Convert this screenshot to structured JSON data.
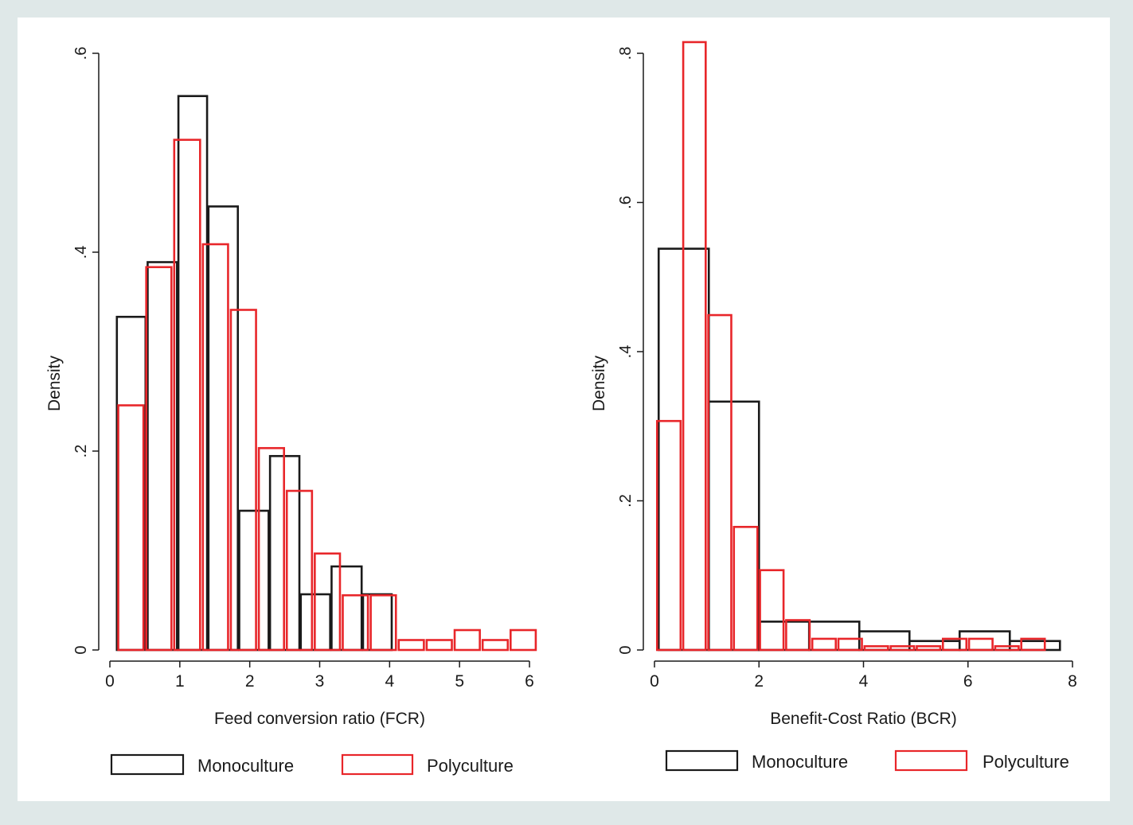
{
  "chart_data": [
    {
      "type": "bar",
      "subtype": "overlaid-histogram",
      "xlabel": "Feed conversion ratio (FCR)",
      "ylabel": "Density",
      "xlim": [
        0,
        6
      ],
      "ylim": [
        0,
        0.6
      ],
      "x_ticks": [
        0,
        1,
        2,
        3,
        4,
        5,
        6
      ],
      "x_tick_labels": [
        "0",
        "1",
        "2",
        "3",
        "4",
        "5",
        "6"
      ],
      "y_ticks": [
        0,
        0.2,
        0.4,
        0.6
      ],
      "y_tick_labels": [
        "0",
        ".2",
        ".4",
        ".6"
      ],
      "grid": false,
      "legend_position": "bottom",
      "series": [
        {
          "name": "Monoculture",
          "color": "#1a1a1a",
          "bins": [
            {
              "x0": 0.1,
              "x1": 0.51,
              "value": 0.335
            },
            {
              "x0": 0.54,
              "x1": 0.96,
              "value": 0.39
            },
            {
              "x0": 0.98,
              "x1": 1.39,
              "value": 0.557
            },
            {
              "x0": 1.41,
              "x1": 1.83,
              "value": 0.446
            },
            {
              "x0": 1.85,
              "x1": 2.27,
              "value": 0.14
            },
            {
              "x0": 2.29,
              "x1": 2.71,
              "value": 0.195
            },
            {
              "x0": 2.73,
              "x1": 3.15,
              "value": 0.056
            },
            {
              "x0": 3.17,
              "x1": 3.6,
              "value": 0.084
            },
            {
              "x0": 3.62,
              "x1": 4.03,
              "value": 0.056
            }
          ]
        },
        {
          "name": "Polyculture",
          "color": "#e8262a",
          "bins": [
            {
              "x0": 0.12,
              "x1": 0.48,
              "value": 0.246
            },
            {
              "x0": 0.52,
              "x1": 0.88,
              "value": 0.385
            },
            {
              "x0": 0.92,
              "x1": 1.29,
              "value": 0.513
            },
            {
              "x0": 1.33,
              "x1": 1.69,
              "value": 0.408
            },
            {
              "x0": 1.73,
              "x1": 2.09,
              "value": 0.342
            },
            {
              "x0": 2.13,
              "x1": 2.49,
              "value": 0.203
            },
            {
              "x0": 2.53,
              "x1": 2.89,
              "value": 0.16
            },
            {
              "x0": 2.93,
              "x1": 3.29,
              "value": 0.097
            },
            {
              "x0": 3.33,
              "x1": 3.69,
              "value": 0.055
            },
            {
              "x0": 3.73,
              "x1": 4.09,
              "value": 0.055
            },
            {
              "x0": 4.13,
              "x1": 4.49,
              "value": 0.01
            },
            {
              "x0": 4.53,
              "x1": 4.89,
              "value": 0.01
            },
            {
              "x0": 4.93,
              "x1": 5.29,
              "value": 0.02
            },
            {
              "x0": 5.33,
              "x1": 5.69,
              "value": 0.01
            },
            {
              "x0": 5.73,
              "x1": 6.09,
              "value": 0.02
            }
          ]
        }
      ]
    },
    {
      "type": "bar",
      "subtype": "overlaid-histogram",
      "xlabel": "Benefit-Cost Ratio (BCR)",
      "ylabel": "Density",
      "xlim": [
        0,
        8
      ],
      "ylim": [
        0,
        0.8
      ],
      "x_ticks": [
        0,
        2,
        4,
        6,
        8
      ],
      "x_tick_labels": [
        "0",
        "2",
        "4",
        "6",
        "8"
      ],
      "y_ticks": [
        0,
        0.2,
        0.4,
        0.6,
        0.8
      ],
      "y_tick_labels": [
        "0",
        ".2",
        ".4",
        ".6",
        ".8"
      ],
      "grid": false,
      "legend_position": "bottom",
      "series": [
        {
          "name": "Monoculture",
          "color": "#1a1a1a",
          "bins": [
            {
              "x0": 0.08,
              "x1": 1.04,
              "value": 0.538
            },
            {
              "x0": 1.04,
              "x1": 2.0,
              "value": 0.333
            },
            {
              "x0": 2.0,
              "x1": 2.96,
              "value": 0.038
            },
            {
              "x0": 2.96,
              "x1": 3.92,
              "value": 0.038
            },
            {
              "x0": 3.92,
              "x1": 4.88,
              "value": 0.025
            },
            {
              "x0": 4.88,
              "x1": 5.84,
              "value": 0.012
            },
            {
              "x0": 5.84,
              "x1": 6.8,
              "value": 0.025
            },
            {
              "x0": 6.8,
              "x1": 7.76,
              "value": 0.012
            }
          ]
        },
        {
          "name": "Polyculture",
          "color": "#e8262a",
          "bins": [
            {
              "x0": 0.05,
              "x1": 0.5,
              "value": 0.307
            },
            {
              "x0": 0.55,
              "x1": 0.98,
              "value": 0.815
            },
            {
              "x0": 1.03,
              "x1": 1.47,
              "value": 0.449
            },
            {
              "x0": 1.52,
              "x1": 1.97,
              "value": 0.165
            },
            {
              "x0": 2.02,
              "x1": 2.47,
              "value": 0.107
            },
            {
              "x0": 2.52,
              "x1": 2.97,
              "value": 0.04
            },
            {
              "x0": 3.02,
              "x1": 3.47,
              "value": 0.015
            },
            {
              "x0": 3.52,
              "x1": 3.97,
              "value": 0.015
            },
            {
              "x0": 4.02,
              "x1": 4.47,
              "value": 0.005
            },
            {
              "x0": 4.52,
              "x1": 4.97,
              "value": 0.005
            },
            {
              "x0": 5.02,
              "x1": 5.47,
              "value": 0.005
            },
            {
              "x0": 5.52,
              "x1": 5.97,
              "value": 0.015
            },
            {
              "x0": 6.02,
              "x1": 6.47,
              "value": 0.015
            },
            {
              "x0": 6.52,
              "x1": 6.97,
              "value": 0.005
            },
            {
              "x0": 7.02,
              "x1": 7.47,
              "value": 0.015
            }
          ]
        }
      ]
    }
  ]
}
